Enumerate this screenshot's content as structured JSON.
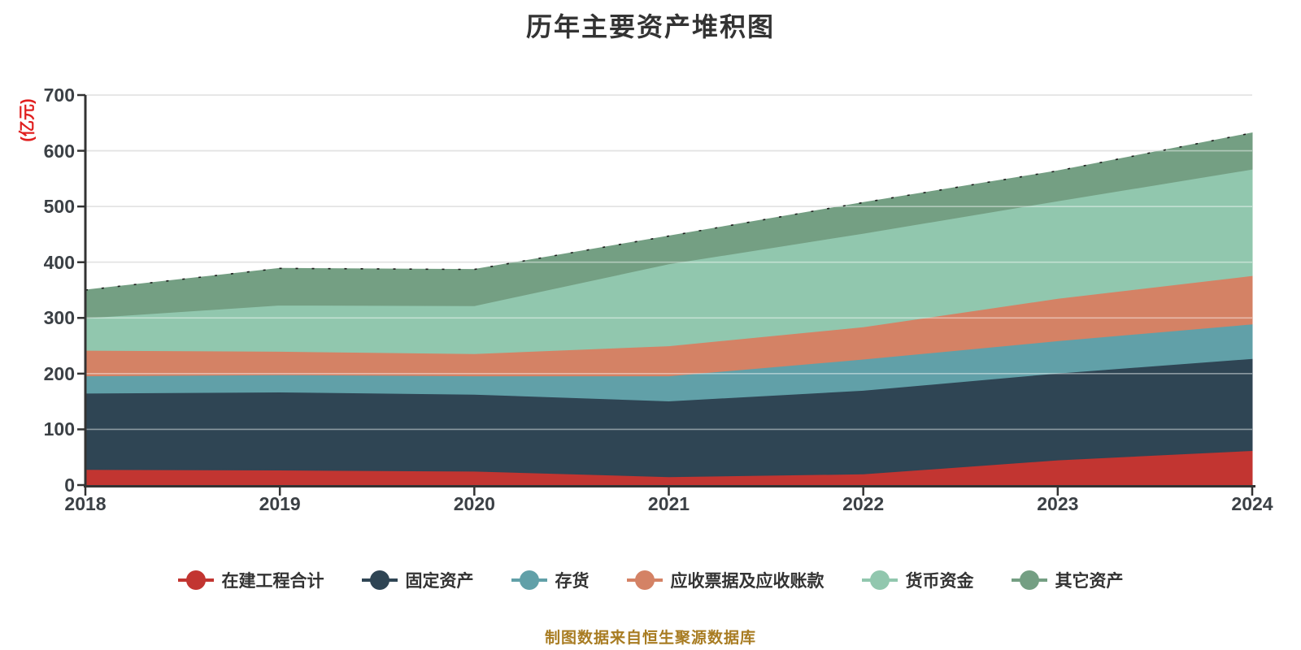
{
  "title": "历年主要资产堆积图",
  "caption": "制图数据来自恒生聚源数据库",
  "y_axis": {
    "unit": "(亿元)",
    "ticks": [
      0,
      100,
      200,
      300,
      400,
      500,
      600,
      700
    ],
    "max": 700
  },
  "x_axis": {
    "years": [
      "2018",
      "2019",
      "2020",
      "2021",
      "2022",
      "2023",
      "2024"
    ]
  },
  "colors": {
    "title_text": "#333333",
    "axis_label": "#3b4045",
    "axis_line": "#333333",
    "gridline": "#cccccc",
    "y_unit_text": "#e01f1f",
    "caption_text": "#a87c22",
    "top_edge_dash": "#1b1b1b",
    "background": "#ffffff"
  },
  "chart_data": {
    "type": "area",
    "stacked": true,
    "title": "历年主要资产堆积图",
    "ylabel": "(亿元)",
    "ylim": [
      0,
      700
    ],
    "yticks": [
      0,
      100,
      200,
      300,
      400,
      500,
      600,
      700
    ],
    "grid": true,
    "legend_position": "bottom",
    "x": [
      2018,
      2019,
      2020,
      2021,
      2022,
      2023,
      2024
    ],
    "series": [
      {
        "name": "在建工程合计",
        "color": "#c23531",
        "values": [
          28,
          27,
          25,
          15,
          20,
          45,
          62
        ]
      },
      {
        "name": "固定资产",
        "color": "#2f4554",
        "values": [
          137,
          140,
          138,
          136,
          150,
          156,
          165
        ]
      },
      {
        "name": "存货",
        "color": "#61a0a8",
        "values": [
          31,
          31,
          33,
          45,
          56,
          58,
          62
        ]
      },
      {
        "name": "应收票据及应收账款",
        "color": "#d48265",
        "values": [
          46,
          42,
          40,
          54,
          58,
          76,
          87
        ]
      },
      {
        "name": "货币资金",
        "color": "#91c7ae",
        "values": [
          58,
          83,
          86,
          147,
          168,
          175,
          191
        ]
      },
      {
        "name": "其它资产",
        "color": "#749f83",
        "values": [
          50,
          66,
          65,
          50,
          55,
          54,
          65
        ]
      }
    ],
    "stack_totals": [
      350,
      389,
      387,
      447,
      507,
      564,
      632
    ]
  }
}
